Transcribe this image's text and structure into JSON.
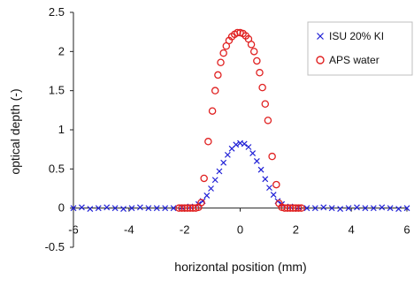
{
  "chart_data": {
    "type": "scatter",
    "xlabel": "horizontal position (mm)",
    "ylabel": "optical depth (-)",
    "xlim": [
      -6,
      6
    ],
    "ylim": [
      -0.5,
      2.5
    ],
    "x_ticks": [
      -6,
      -4,
      -2,
      0,
      2,
      4,
      6
    ],
    "y_ticks": [
      -0.5,
      0,
      0.5,
      1,
      1.5,
      2,
      2.5
    ],
    "x_tick_labels": [
      "-6",
      "-4",
      "-2",
      "0",
      "2",
      "4",
      "6"
    ],
    "y_tick_labels": [
      "-0.5",
      "0",
      "0.5",
      "1",
      "1.5",
      "2",
      "2.5"
    ],
    "grid": false,
    "legend_position": "top-right",
    "series": [
      {
        "name": "ISU 20% KI",
        "marker": "x",
        "color": "#1f1fd6",
        "x": [
          -6.0,
          -5.7,
          -5.4,
          -5.1,
          -4.8,
          -4.5,
          -4.2,
          -3.9,
          -3.6,
          -3.3,
          -3.0,
          -2.7,
          -2.4,
          -2.1,
          -1.8,
          -1.5,
          -1.35,
          -1.2,
          -1.05,
          -0.9,
          -0.75,
          -0.6,
          -0.45,
          -0.3,
          -0.15,
          0.0,
          0.15,
          0.3,
          0.45,
          0.6,
          0.75,
          0.9,
          1.05,
          1.2,
          1.35,
          1.5,
          1.8,
          2.1,
          2.4,
          2.7,
          3.0,
          3.3,
          3.6,
          3.9,
          4.2,
          4.5,
          4.8,
          5.1,
          5.4,
          5.7,
          6.0
        ],
        "y": [
          0.0,
          0.01,
          -0.01,
          0.0,
          0.01,
          0.0,
          -0.01,
          0.0,
          0.01,
          0.0,
          0.0,
          0.0,
          0.0,
          0.01,
          0.02,
          0.05,
          0.09,
          0.16,
          0.25,
          0.36,
          0.47,
          0.58,
          0.68,
          0.76,
          0.81,
          0.83,
          0.82,
          0.78,
          0.7,
          0.6,
          0.49,
          0.37,
          0.26,
          0.17,
          0.09,
          0.05,
          0.02,
          0.01,
          0.0,
          0.0,
          0.01,
          0.0,
          -0.01,
          0.0,
          0.01,
          0.0,
          0.0,
          0.01,
          0.0,
          -0.01,
          0.0
        ]
      },
      {
        "name": "APS water",
        "marker": "o",
        "color": "#e02020",
        "x": [
          -2.2,
          -2.1,
          -2.0,
          -1.9,
          -1.8,
          -1.7,
          -1.6,
          -1.5,
          -1.4,
          -1.3,
          -1.15,
          -1.0,
          -0.9,
          -0.8,
          -0.7,
          -0.6,
          -0.5,
          -0.4,
          -0.3,
          -0.2,
          -0.1,
          0.0,
          0.1,
          0.2,
          0.3,
          0.4,
          0.5,
          0.6,
          0.7,
          0.8,
          0.9,
          1.0,
          1.15,
          1.3,
          1.4,
          1.5,
          1.6,
          1.7,
          1.8,
          1.9,
          2.0,
          2.1,
          2.2
        ],
        "y": [
          0.0,
          0.0,
          0.0,
          0.0,
          0.0,
          0.0,
          0.0,
          0.01,
          0.07,
          0.38,
          0.85,
          1.24,
          1.5,
          1.7,
          1.86,
          1.98,
          2.07,
          2.14,
          2.19,
          2.22,
          2.24,
          2.24,
          2.23,
          2.2,
          2.16,
          2.09,
          2.0,
          1.88,
          1.73,
          1.54,
          1.33,
          1.12,
          0.66,
          0.3,
          0.06,
          0.01,
          0.0,
          0.0,
          0.0,
          0.0,
          0.0,
          0.0,
          0.0
        ]
      }
    ]
  }
}
